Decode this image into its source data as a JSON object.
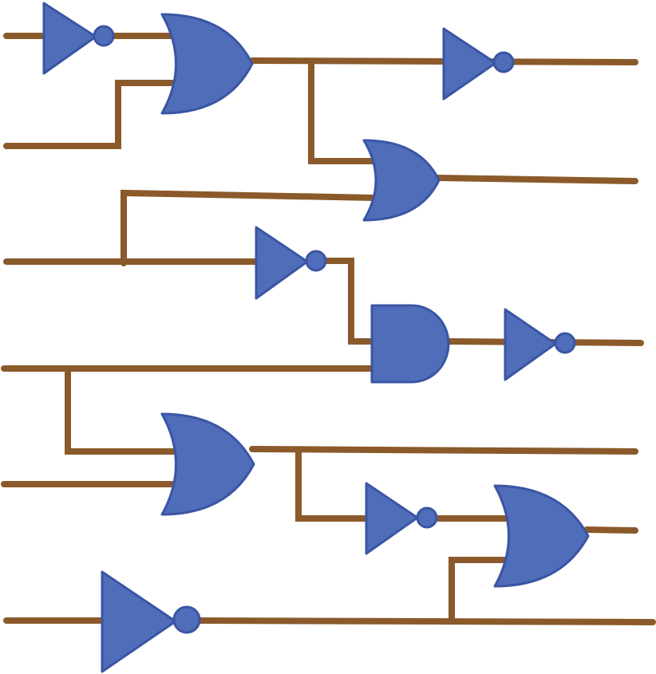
{
  "colors": {
    "wire": "#8B5A2B",
    "gate_fill": "#4F6DB8",
    "gate_edge": "#3A55A4",
    "background": "#FFFFFF"
  },
  "gates": [
    {
      "id": "not-1",
      "type": "NOT"
    },
    {
      "id": "or-1",
      "type": "OR"
    },
    {
      "id": "not-2",
      "type": "NOT"
    },
    {
      "id": "or-2",
      "type": "OR"
    },
    {
      "id": "not-3",
      "type": "NOT"
    },
    {
      "id": "and-1",
      "type": "AND"
    },
    {
      "id": "not-4",
      "type": "NOT"
    },
    {
      "id": "or-3",
      "type": "OR"
    },
    {
      "id": "not-5",
      "type": "NOT"
    },
    {
      "id": "or-4",
      "type": "OR"
    },
    {
      "id": "not-6",
      "type": "NOT"
    }
  ]
}
